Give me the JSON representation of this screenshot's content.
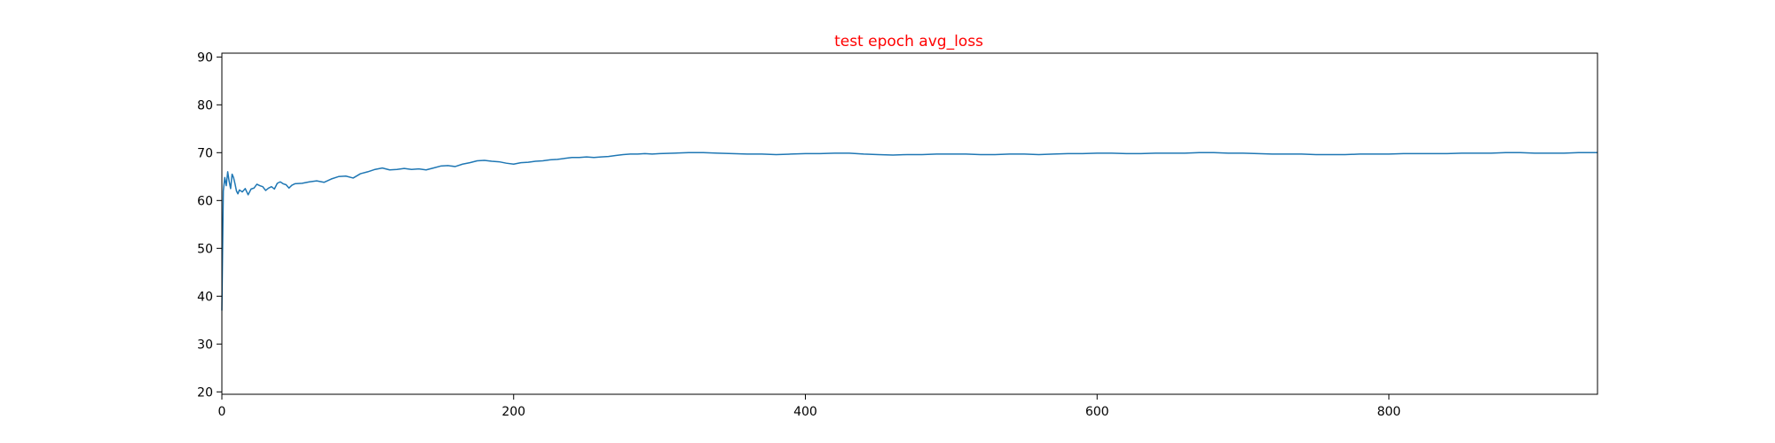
{
  "chart_data": {
    "type": "line",
    "title": "test epoch avg_loss",
    "title_color": "#ff0000",
    "xlabel": "",
    "ylabel": "",
    "xlim": [
      0,
      943
    ],
    "ylim": [
      19.5,
      90.8
    ],
    "xticks": [
      0,
      200,
      400,
      600,
      800
    ],
    "yticks": [
      20,
      30,
      40,
      50,
      60,
      70,
      80,
      90
    ],
    "grid": false,
    "legend": "none",
    "series": [
      {
        "color": "#1f77b4",
        "points": [
          [
            0,
            37.0
          ],
          [
            1,
            62.0
          ],
          [
            2,
            64.8
          ],
          [
            3,
            63.1
          ],
          [
            4,
            66.0
          ],
          [
            5,
            64.0
          ],
          [
            6,
            62.5
          ],
          [
            7,
            65.5
          ],
          [
            8,
            64.8
          ],
          [
            9,
            63.5
          ],
          [
            10,
            62.0
          ],
          [
            11,
            61.4
          ],
          [
            12,
            62.2
          ],
          [
            14,
            61.8
          ],
          [
            16,
            62.5
          ],
          [
            18,
            61.2
          ],
          [
            20,
            62.4
          ],
          [
            22,
            62.6
          ],
          [
            24,
            63.4
          ],
          [
            26,
            63.1
          ],
          [
            28,
            62.9
          ],
          [
            30,
            62.1
          ],
          [
            32,
            62.6
          ],
          [
            34,
            62.9
          ],
          [
            36,
            62.4
          ],
          [
            38,
            63.6
          ],
          [
            40,
            63.9
          ],
          [
            42,
            63.5
          ],
          [
            44,
            63.3
          ],
          [
            46,
            62.6
          ],
          [
            48,
            63.2
          ],
          [
            50,
            63.5
          ],
          [
            55,
            63.6
          ],
          [
            60,
            63.9
          ],
          [
            65,
            64.1
          ],
          [
            70,
            63.8
          ],
          [
            75,
            64.5
          ],
          [
            80,
            65.0
          ],
          [
            85,
            65.1
          ],
          [
            90,
            64.7
          ],
          [
            95,
            65.6
          ],
          [
            100,
            66.0
          ],
          [
            105,
            66.5
          ],
          [
            110,
            66.8
          ],
          [
            115,
            66.4
          ],
          [
            120,
            66.5
          ],
          [
            125,
            66.7
          ],
          [
            130,
            66.5
          ],
          [
            135,
            66.6
          ],
          [
            140,
            66.4
          ],
          [
            145,
            66.8
          ],
          [
            150,
            67.2
          ],
          [
            155,
            67.3
          ],
          [
            160,
            67.1
          ],
          [
            165,
            67.6
          ],
          [
            170,
            67.9
          ],
          [
            175,
            68.3
          ],
          [
            180,
            68.4
          ],
          [
            185,
            68.2
          ],
          [
            190,
            68.1
          ],
          [
            195,
            67.8
          ],
          [
            200,
            67.6
          ],
          [
            205,
            67.9
          ],
          [
            210,
            68.0
          ],
          [
            215,
            68.2
          ],
          [
            220,
            68.3
          ],
          [
            225,
            68.5
          ],
          [
            230,
            68.6
          ],
          [
            235,
            68.8
          ],
          [
            240,
            69.0
          ],
          [
            245,
            69.0
          ],
          [
            250,
            69.1
          ],
          [
            255,
            69.0
          ],
          [
            260,
            69.1
          ],
          [
            265,
            69.2
          ],
          [
            270,
            69.4
          ],
          [
            275,
            69.6
          ],
          [
            280,
            69.7
          ],
          [
            285,
            69.7
          ],
          [
            290,
            69.8
          ],
          [
            295,
            69.7
          ],
          [
            300,
            69.8
          ],
          [
            310,
            69.9
          ],
          [
            320,
            70.0
          ],
          [
            330,
            70.0
          ],
          [
            340,
            69.9
          ],
          [
            350,
            69.8
          ],
          [
            360,
            69.7
          ],
          [
            370,
            69.7
          ],
          [
            380,
            69.6
          ],
          [
            390,
            69.7
          ],
          [
            400,
            69.8
          ],
          [
            410,
            69.8
          ],
          [
            420,
            69.9
          ],
          [
            430,
            69.9
          ],
          [
            440,
            69.7
          ],
          [
            450,
            69.6
          ],
          [
            460,
            69.5
          ],
          [
            470,
            69.6
          ],
          [
            480,
            69.6
          ],
          [
            490,
            69.7
          ],
          [
            500,
            69.7
          ],
          [
            510,
            69.7
          ],
          [
            520,
            69.6
          ],
          [
            530,
            69.6
          ],
          [
            540,
            69.7
          ],
          [
            550,
            69.7
          ],
          [
            560,
            69.6
          ],
          [
            570,
            69.7
          ],
          [
            580,
            69.8
          ],
          [
            590,
            69.8
          ],
          [
            600,
            69.9
          ],
          [
            610,
            69.9
          ],
          [
            620,
            69.8
          ],
          [
            630,
            69.8
          ],
          [
            640,
            69.9
          ],
          [
            650,
            69.9
          ],
          [
            660,
            69.9
          ],
          [
            670,
            70.0
          ],
          [
            680,
            70.0
          ],
          [
            690,
            69.9
          ],
          [
            700,
            69.9
          ],
          [
            710,
            69.8
          ],
          [
            720,
            69.7
          ],
          [
            730,
            69.7
          ],
          [
            740,
            69.7
          ],
          [
            750,
            69.6
          ],
          [
            760,
            69.6
          ],
          [
            770,
            69.6
          ],
          [
            780,
            69.7
          ],
          [
            790,
            69.7
          ],
          [
            800,
            69.7
          ],
          [
            810,
            69.8
          ],
          [
            820,
            69.8
          ],
          [
            830,
            69.8
          ],
          [
            840,
            69.8
          ],
          [
            850,
            69.9
          ],
          [
            860,
            69.9
          ],
          [
            870,
            69.9
          ],
          [
            880,
            70.0
          ],
          [
            890,
            70.0
          ],
          [
            900,
            69.9
          ],
          [
            910,
            69.9
          ],
          [
            920,
            69.9
          ],
          [
            930,
            70.0
          ],
          [
            943,
            70.0
          ]
        ]
      }
    ]
  }
}
